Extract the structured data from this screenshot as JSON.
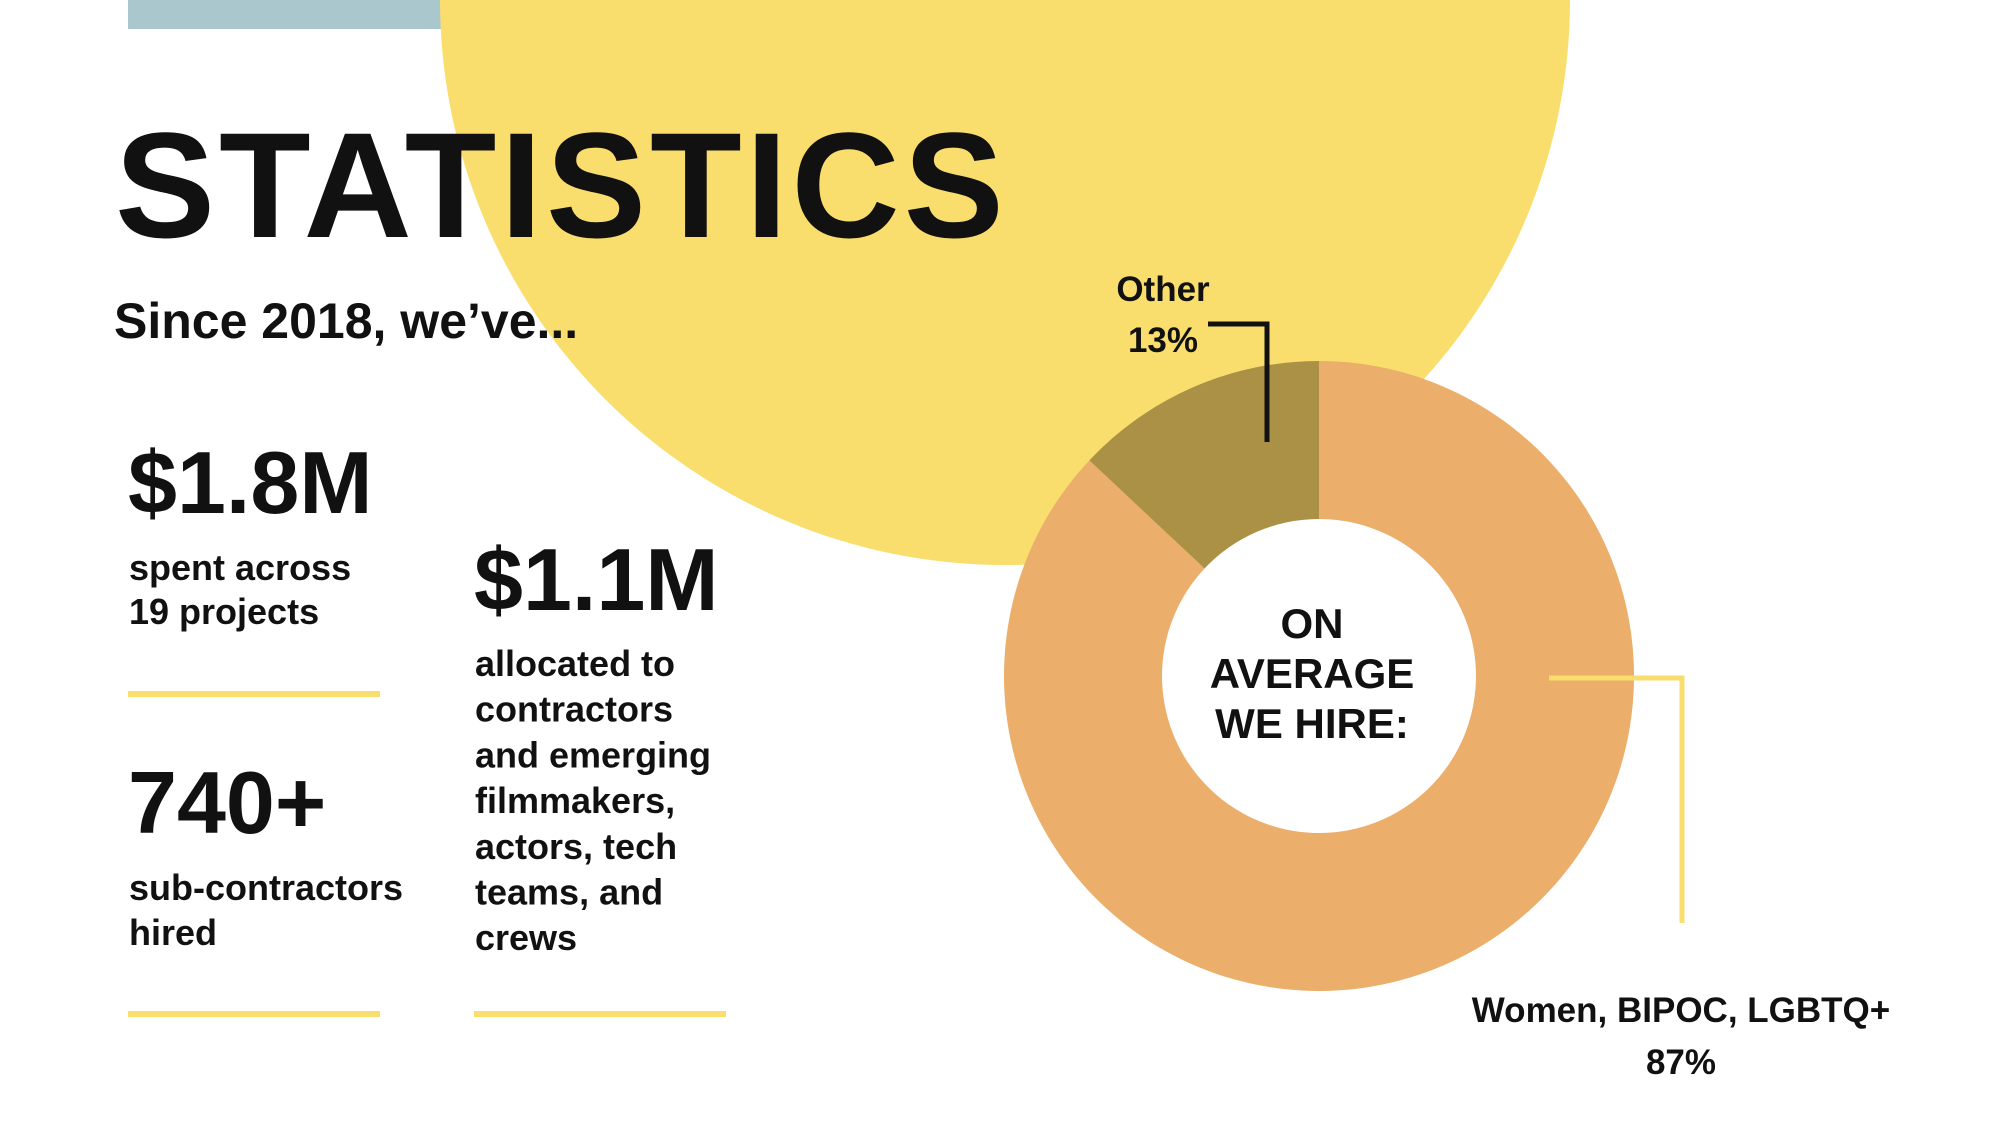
{
  "header": {
    "title": "STATISTICS",
    "subtitle": "Since 2018, we’ve..."
  },
  "stats": [
    {
      "figure": "$1.8M",
      "lines": [
        "spent across",
        "19 projects"
      ]
    },
    {
      "figure": "740+",
      "lines": [
        "sub-contractors",
        "hired"
      ]
    },
    {
      "figure": "$1.1M",
      "lines": [
        "allocated to",
        "contractors",
        "and emerging",
        "filmmakers,",
        "actors, tech",
        "teams, and",
        "crews"
      ]
    }
  ],
  "chart_data": {
    "type": "donut",
    "center_label": [
      "ON",
      "AVERAGE",
      "WE HIRE:"
    ],
    "categories": [
      "Women, BIPOC, LGBTQ+",
      "Other"
    ],
    "values": [
      87,
      13
    ],
    "value_labels": [
      "87%",
      "13%"
    ],
    "colors": [
      "#ecae6b",
      "#ab9145"
    ]
  }
}
